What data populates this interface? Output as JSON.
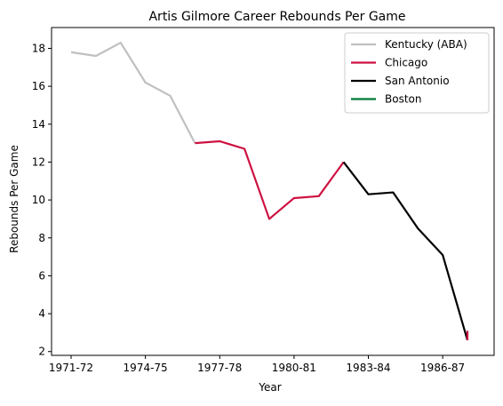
{
  "chart_data": {
    "type": "line",
    "title": "Artis Gilmore Career Rebounds Per Game",
    "xlabel": "Year",
    "ylabel": "Rebounds Per Game",
    "x_tick_labels": [
      "1971-72",
      "1974-75",
      "1977-78",
      "1980-81",
      "1983-84",
      "1986-87"
    ],
    "y_ticks": [
      2,
      4,
      6,
      8,
      10,
      12,
      14,
      16,
      18
    ],
    "ylim": [
      1.8,
      19.1
    ],
    "grid": false,
    "legend_position": "upper right",
    "x_seasons": [
      "1971-72",
      "1972-73",
      "1973-74",
      "1974-75",
      "1975-76",
      "1976-77",
      "1977-78",
      "1978-79",
      "1979-80",
      "1980-81",
      "1981-82",
      "1982-83",
      "1983-84",
      "1984-85",
      "1985-86",
      "1986-87",
      "1987-88"
    ],
    "series": [
      {
        "name": "Kentucky (ABA)",
        "color": "#c0c0c0",
        "x": [
          "1971-72",
          "1972-73",
          "1973-74",
          "1974-75",
          "1975-76",
          "1976-77"
        ],
        "values": [
          17.8,
          17.6,
          18.3,
          16.2,
          15.5,
          13.0
        ]
      },
      {
        "name": "Chicago",
        "color": "#ce1141",
        "x": [
          "1976-77",
          "1977-78",
          "1978-79",
          "1979-80",
          "1980-81",
          "1981-82",
          "1982-83"
        ],
        "values": [
          13.0,
          13.1,
          12.7,
          9.0,
          10.1,
          10.2,
          12.0
        ]
      },
      {
        "name": "San Antonio",
        "color": "#000000",
        "x": [
          "1982-83",
          "1983-84",
          "1984-85",
          "1985-86",
          "1986-87",
          "1987-88"
        ],
        "values": [
          12.0,
          10.3,
          10.4,
          8.5,
          7.1,
          2.6
        ]
      },
      {
        "name": "Chicago",
        "color": "#ce1141",
        "legend": false,
        "x": [
          "1987-88",
          "1987-88"
        ],
        "values": [
          3.1,
          2.6
        ]
      },
      {
        "name": "Boston",
        "color": "#007a33",
        "x": [],
        "values": []
      }
    ]
  }
}
